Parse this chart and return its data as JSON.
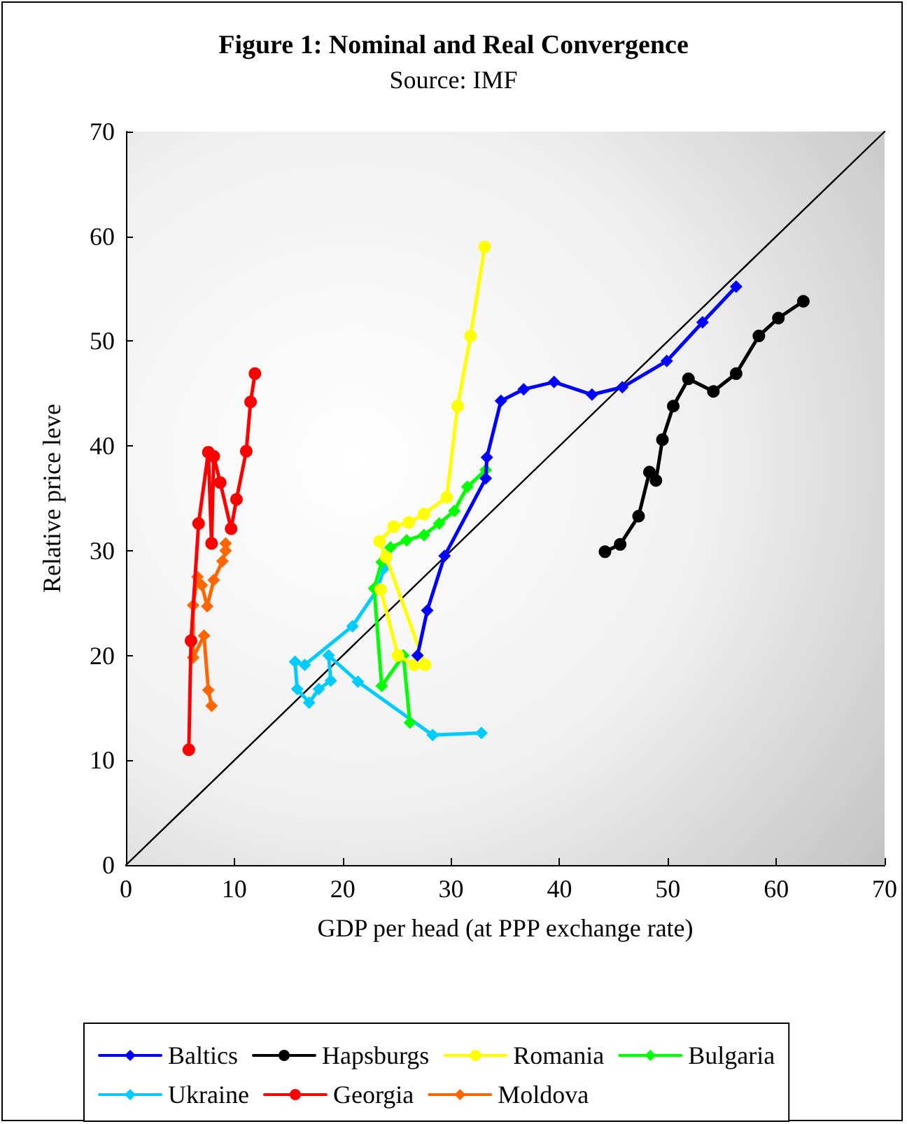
{
  "chart_data": {
    "type": "line",
    "title": "Figure 1: Nominal and Real Convergence",
    "subtitle": "Source: IMF",
    "xlabel": "GDP per head (at PPP exchange rate)",
    "ylabel": "Relative price leve",
    "xlim": [
      0,
      70
    ],
    "ylim": [
      0,
      70
    ],
    "xticks": [
      0,
      10,
      20,
      30,
      40,
      50,
      60,
      70
    ],
    "yticks": [
      0,
      10,
      20,
      30,
      40,
      50,
      60,
      70
    ],
    "grid": false,
    "legend": "bottom",
    "series": [
      {
        "name": "Baltics",
        "color": "#0000ff",
        "marker": "diamond",
        "x": [
          26.9,
          27.8,
          29.4,
          33.2,
          33.3,
          34.6,
          36.7,
          39.5,
          43.0,
          45.8,
          49.9,
          53.2,
          56.3
        ],
        "values": [
          20.0,
          24.3,
          29.5,
          36.9,
          38.9,
          44.3,
          45.4,
          46.1,
          44.9,
          45.6,
          48.1,
          51.8,
          55.2
        ]
      },
      {
        "name": "Hapsburgs",
        "color": "#000000",
        "marker": "circle",
        "x": [
          44.2,
          45.6,
          47.3,
          48.3,
          48.9,
          49.5,
          50.5,
          51.9,
          54.2,
          56.3,
          58.4,
          60.2,
          62.5
        ],
        "values": [
          29.9,
          30.6,
          33.3,
          37.5,
          36.7,
          40.6,
          43.8,
          46.4,
          45.2,
          46.9,
          50.5,
          52.2,
          53.8
        ]
      },
      {
        "name": "Romania",
        "color": "#ffff00",
        "marker": "circle",
        "x": [
          23.5,
          25.1,
          26.6,
          27.6,
          24.0,
          23.4,
          24.7,
          26.1,
          27.5,
          29.6,
          30.6,
          31.8,
          33.1
        ],
        "values": [
          26.3,
          20.0,
          19.1,
          19.1,
          29.4,
          30.9,
          32.3,
          32.7,
          33.5,
          35.1,
          43.8,
          50.5,
          59.0
        ]
      },
      {
        "name": "Bulgaria",
        "color": "#00ff00",
        "marker": "diamond",
        "x": [
          26.2,
          25.6,
          23.6,
          22.9,
          23.6,
          24.4,
          25.9,
          27.5,
          28.9,
          30.3,
          31.5,
          33.2
        ],
        "values": [
          13.6,
          20.0,
          17.1,
          26.4,
          28.9,
          30.3,
          31.0,
          31.5,
          32.6,
          33.8,
          36.1,
          37.7
        ]
      },
      {
        "name": "Ukraine",
        "color": "#00ccff",
        "marker": "diamond",
        "x": [
          32.8,
          28.3,
          21.4,
          18.7,
          18.9,
          17.8,
          16.9,
          15.8,
          15.6,
          16.5,
          20.9,
          23.2,
          23.8
        ],
        "values": [
          12.6,
          12.4,
          17.5,
          20.0,
          17.6,
          16.8,
          15.5,
          16.8,
          19.4,
          19.1,
          22.8,
          26.3,
          28.3
        ]
      },
      {
        "name": "Georgia",
        "color": "#ff0000",
        "marker": "circle",
        "x": [
          5.8,
          6.0,
          6.7,
          7.6,
          7.9,
          8.1,
          8.7,
          9.7,
          10.2,
          11.1,
          11.5,
          11.9
        ],
        "values": [
          11.0,
          21.4,
          32.6,
          39.4,
          30.7,
          39.0,
          36.5,
          32.1,
          34.9,
          39.5,
          44.2,
          46.9
        ]
      },
      {
        "name": "Moldova",
        "color": "#ff6600",
        "marker": "diamond",
        "x": [
          7.9,
          7.6,
          7.2,
          6.2,
          6.2,
          6.6,
          7.0,
          7.5,
          8.1,
          8.9,
          9.2,
          9.2
        ],
        "values": [
          15.2,
          16.7,
          21.9,
          19.8,
          24.8,
          27.5,
          26.7,
          24.7,
          27.2,
          29.0,
          30.0,
          30.7
        ]
      },
      {
        "color": "#000000",
        "marker": "none",
        "x": [
          0,
          70
        ],
        "values": [
          0,
          70
        ]
      }
    ]
  }
}
